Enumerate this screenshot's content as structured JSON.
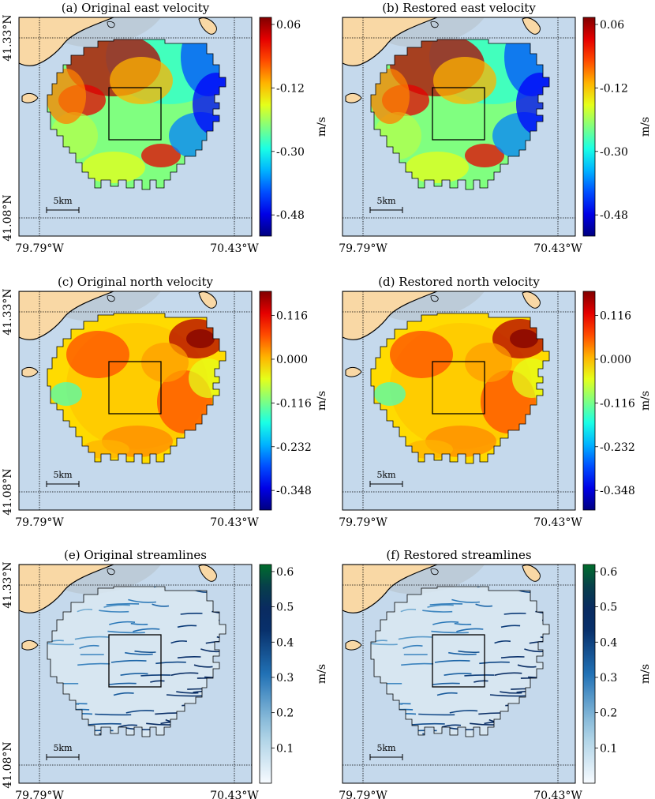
{
  "chart_data": [
    {
      "type": "heatmap",
      "title": "(a) Original east velocity",
      "lat_labels": [
        "41.33°N",
        "41.08°N"
      ],
      "lon_labels": [
        "79.79°W",
        "70.43°W"
      ],
      "scale_bar": "5km",
      "colorbar": {
        "unit": "m/s",
        "ticks": [
          "0.06",
          "-0.12",
          "-0.30",
          "-0.48"
        ],
        "range": [
          -0.54,
          0.08
        ],
        "colormap": "jet"
      }
    },
    {
      "type": "heatmap",
      "title": "(b) Restored east velocity",
      "lat_labels": [
        "",
        ""
      ],
      "lon_labels": [
        "79.79°W",
        "70.43°W"
      ],
      "scale_bar": "5km",
      "colorbar": {
        "unit": "m/s",
        "ticks": [
          "0.06",
          "-0.12",
          "-0.30",
          "-0.48"
        ],
        "range": [
          -0.54,
          0.08
        ],
        "colormap": "jet"
      }
    },
    {
      "type": "heatmap",
      "title": "(c) Original north velocity",
      "lat_labels": [
        "41.33°N",
        "41.08°N"
      ],
      "lon_labels": [
        "79.79°W",
        "70.43°W"
      ],
      "scale_bar": "5km",
      "colorbar": {
        "unit": "m/s",
        "ticks": [
          "0.116",
          "0.000",
          "-0.116",
          "-0.232",
          "-0.348"
        ],
        "range": [
          -0.4,
          0.18
        ],
        "colormap": "jet"
      }
    },
    {
      "type": "heatmap",
      "title": "(d) Restored north velocity",
      "lat_labels": [
        "",
        ""
      ],
      "lon_labels": [
        "79.79°W",
        "70.43°W"
      ],
      "scale_bar": "5km",
      "colorbar": {
        "unit": "m/s",
        "ticks": [
          "0.116",
          "0.000",
          "-0.116",
          "-0.232",
          "-0.348"
        ],
        "range": [
          -0.4,
          0.18
        ],
        "colormap": "jet"
      }
    },
    {
      "type": "heatmap",
      "title": "(e) Original streamlines",
      "lat_labels": [
        "41.33°N",
        "41.08°N"
      ],
      "lon_labels": [
        "79.79°W",
        "70.43°W"
      ],
      "scale_bar": "5km",
      "colorbar": {
        "unit": "m/s",
        "ticks": [
          "0.6",
          "0.5",
          "0.4",
          "0.3",
          "0.2",
          "0.1"
        ],
        "range": [
          0.0,
          0.62
        ],
        "colormap": "white-blue-green"
      }
    },
    {
      "type": "heatmap",
      "title": "(f) Restored streamlines",
      "lat_labels": [
        "",
        ""
      ],
      "lon_labels": [
        "79.79°W",
        "70.43°W"
      ],
      "scale_bar": "5km",
      "colorbar": {
        "unit": "m/s",
        "ticks": [
          "0.6",
          "0.5",
          "0.4",
          "0.3",
          "0.2",
          "0.1"
        ],
        "range": [
          0.0,
          0.62
        ],
        "colormap": "white-blue-green"
      }
    }
  ],
  "colors": {
    "ocean": "#c5d9ec",
    "land": "#f9d8a5",
    "shallow": "#bccbd8"
  }
}
